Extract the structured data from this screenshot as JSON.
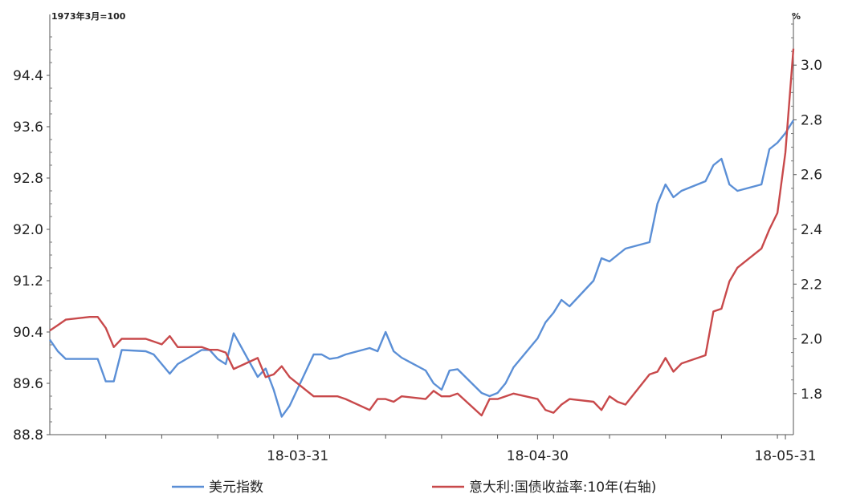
{
  "chart_data": {
    "type": "line",
    "left_unit": "1973年3月=100",
    "right_unit": "%",
    "x_ticks": [
      "18-03-31",
      "18-04-30",
      "18-05-31"
    ],
    "left_axis": {
      "ylim": [
        88.8,
        95.2
      ],
      "ticks": [
        88.8,
        89.6,
        90.4,
        91.2,
        92.0,
        92.8,
        93.6,
        94.4
      ],
      "tick_labels": [
        "88.8",
        "89.6",
        "90.4",
        "91.2",
        "92.0",
        "92.8",
        "93.6",
        "94.4"
      ]
    },
    "right_axis": {
      "ylim": [
        1.65,
        3.15
      ],
      "ticks": [
        1.8,
        2.0,
        2.2,
        2.4,
        2.6,
        2.8,
        3.0
      ],
      "tick_labels": [
        "1.8",
        "2.0",
        "2.2",
        "2.4",
        "2.6",
        "2.8",
        "3.0"
      ]
    },
    "x_range": [
      "2018-02-28",
      "2018-06-01"
    ],
    "grid": false,
    "legend_position": "bottom",
    "series": [
      {
        "name": "美元指数",
        "axis": "left",
        "color": "#5B8FD6",
        "points": [
          [
            "2018-02-28",
            90.28
          ],
          [
            "2018-03-01",
            90.1
          ],
          [
            "2018-03-02",
            89.98
          ],
          [
            "2018-03-05",
            89.98
          ],
          [
            "2018-03-06",
            89.98
          ],
          [
            "2018-03-07",
            89.63
          ],
          [
            "2018-03-08",
            89.63
          ],
          [
            "2018-03-09",
            90.12
          ],
          [
            "2018-03-12",
            90.1
          ],
          [
            "2018-03-13",
            90.05
          ],
          [
            "2018-03-14",
            89.9
          ],
          [
            "2018-03-15",
            89.75
          ],
          [
            "2018-03-16",
            89.9
          ],
          [
            "2018-03-19",
            90.12
          ],
          [
            "2018-03-20",
            90.12
          ],
          [
            "2018-03-21",
            89.98
          ],
          [
            "2018-03-22",
            89.9
          ],
          [
            "2018-03-23",
            90.38
          ],
          [
            "2018-03-26",
            89.7
          ],
          [
            "2018-03-27",
            89.83
          ],
          [
            "2018-03-28",
            89.5
          ],
          [
            "2018-03-29",
            89.08
          ],
          [
            "2018-03-30",
            89.25
          ],
          [
            "2018-04-02",
            90.05
          ],
          [
            "2018-04-03",
            90.05
          ],
          [
            "2018-04-04",
            89.98
          ],
          [
            "2018-04-05",
            90.0
          ],
          [
            "2018-04-06",
            90.05
          ],
          [
            "2018-04-09",
            90.15
          ],
          [
            "2018-04-10",
            90.1
          ],
          [
            "2018-04-11",
            90.4
          ],
          [
            "2018-04-12",
            90.1
          ],
          [
            "2018-04-13",
            90.0
          ],
          [
            "2018-04-16",
            89.8
          ],
          [
            "2018-04-17",
            89.6
          ],
          [
            "2018-04-18",
            89.5
          ],
          [
            "2018-04-19",
            89.8
          ],
          [
            "2018-04-20",
            89.82
          ],
          [
            "2018-04-23",
            89.45
          ],
          [
            "2018-04-24",
            89.4
          ],
          [
            "2018-04-25",
            89.45
          ],
          [
            "2018-04-26",
            89.6
          ],
          [
            "2018-04-27",
            89.85
          ],
          [
            "2018-04-30",
            90.3
          ],
          [
            "2018-05-01",
            90.55
          ],
          [
            "2018-05-02",
            90.7
          ],
          [
            "2018-05-03",
            90.9
          ],
          [
            "2018-05-04",
            90.8
          ],
          [
            "2018-05-07",
            91.2
          ],
          [
            "2018-05-08",
            91.55
          ],
          [
            "2018-05-09",
            91.5
          ],
          [
            "2018-05-10",
            91.6
          ],
          [
            "2018-05-11",
            91.7
          ],
          [
            "2018-05-14",
            91.8
          ],
          [
            "2018-05-15",
            92.4
          ],
          [
            "2018-05-16",
            92.7
          ],
          [
            "2018-05-17",
            92.5
          ],
          [
            "2018-05-18",
            92.6
          ],
          [
            "2018-05-21",
            92.75
          ],
          [
            "2018-05-22",
            93.0
          ],
          [
            "2018-05-23",
            93.1
          ],
          [
            "2018-05-24",
            92.7
          ],
          [
            "2018-05-25",
            92.6
          ],
          [
            "2018-05-28",
            92.7
          ],
          [
            "2018-05-29",
            93.25
          ],
          [
            "2018-05-30",
            93.35
          ],
          [
            "2018-05-31",
            93.5
          ],
          [
            "2018-06-01",
            93.7
          ]
        ]
      },
      {
        "name": "意大利:国债收益率:10年(右轴)",
        "axis": "right",
        "color": "#C8494B",
        "points": [
          [
            "2018-02-28",
            2.03
          ],
          [
            "2018-03-01",
            2.05
          ],
          [
            "2018-03-02",
            2.07
          ],
          [
            "2018-03-05",
            2.08
          ],
          [
            "2018-03-06",
            2.08
          ],
          [
            "2018-03-07",
            2.04
          ],
          [
            "2018-03-08",
            1.97
          ],
          [
            "2018-03-09",
            2.0
          ],
          [
            "2018-03-12",
            2.0
          ],
          [
            "2018-03-13",
            1.99
          ],
          [
            "2018-03-14",
            1.98
          ],
          [
            "2018-03-15",
            2.01
          ],
          [
            "2018-03-16",
            1.97
          ],
          [
            "2018-03-19",
            1.97
          ],
          [
            "2018-03-20",
            1.96
          ],
          [
            "2018-03-21",
            1.96
          ],
          [
            "2018-03-22",
            1.95
          ],
          [
            "2018-03-23",
            1.89
          ],
          [
            "2018-03-26",
            1.93
          ],
          [
            "2018-03-27",
            1.86
          ],
          [
            "2018-03-28",
            1.87
          ],
          [
            "2018-03-29",
            1.9
          ],
          [
            "2018-03-30",
            1.86
          ],
          [
            "2018-04-02",
            1.79
          ],
          [
            "2018-04-03",
            1.79
          ],
          [
            "2018-04-04",
            1.79
          ],
          [
            "2018-04-05",
            1.79
          ],
          [
            "2018-04-06",
            1.78
          ],
          [
            "2018-04-09",
            1.74
          ],
          [
            "2018-04-10",
            1.78
          ],
          [
            "2018-04-11",
            1.78
          ],
          [
            "2018-04-12",
            1.77
          ],
          [
            "2018-04-13",
            1.79
          ],
          [
            "2018-04-16",
            1.78
          ],
          [
            "2018-04-17",
            1.81
          ],
          [
            "2018-04-18",
            1.79
          ],
          [
            "2018-04-19",
            1.79
          ],
          [
            "2018-04-20",
            1.8
          ],
          [
            "2018-04-23",
            1.72
          ],
          [
            "2018-04-24",
            1.78
          ],
          [
            "2018-04-25",
            1.78
          ],
          [
            "2018-04-26",
            1.79
          ],
          [
            "2018-04-27",
            1.8
          ],
          [
            "2018-04-30",
            1.78
          ],
          [
            "2018-05-01",
            1.74
          ],
          [
            "2018-05-02",
            1.73
          ],
          [
            "2018-05-03",
            1.76
          ],
          [
            "2018-05-04",
            1.78
          ],
          [
            "2018-05-07",
            1.77
          ],
          [
            "2018-05-08",
            1.74
          ],
          [
            "2018-05-09",
            1.79
          ],
          [
            "2018-05-10",
            1.77
          ],
          [
            "2018-05-11",
            1.76
          ],
          [
            "2018-05-14",
            1.87
          ],
          [
            "2018-05-15",
            1.88
          ],
          [
            "2018-05-16",
            1.93
          ],
          [
            "2018-05-17",
            1.88
          ],
          [
            "2018-05-18",
            1.91
          ],
          [
            "2018-05-21",
            1.94
          ],
          [
            "2018-05-22",
            2.1
          ],
          [
            "2018-05-23",
            2.11
          ],
          [
            "2018-05-24",
            2.21
          ],
          [
            "2018-05-25",
            2.26
          ],
          [
            "2018-05-28",
            2.33
          ],
          [
            "2018-05-29",
            2.4
          ],
          [
            "2018-05-30",
            2.46
          ],
          [
            "2018-05-31",
            2.68
          ],
          [
            "2018-06-01",
            3.06
          ]
        ]
      }
    ]
  }
}
